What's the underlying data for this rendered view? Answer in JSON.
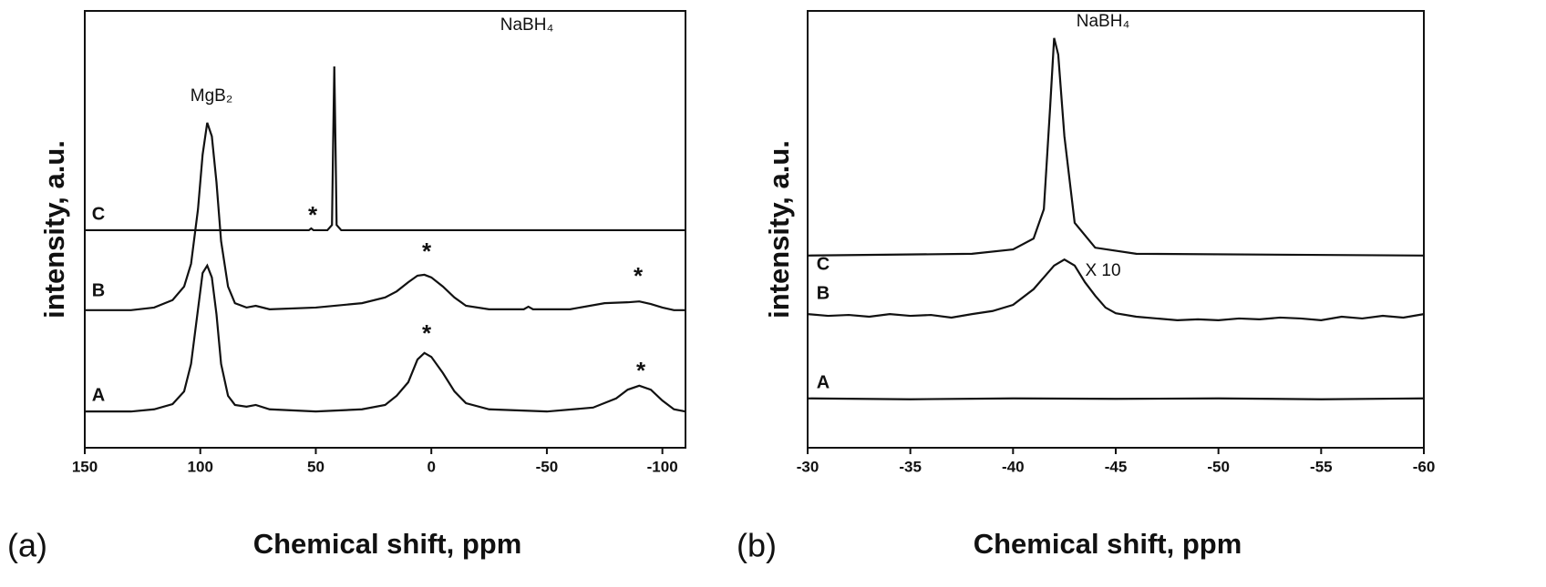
{
  "chart_data": [
    {
      "type": "line",
      "panel_label": "(a)",
      "xlabel": "Chemical shift, ppm",
      "ylabel": "intensity, a.u.",
      "xlim": [
        150,
        -110
      ],
      "xticks": [
        150,
        100,
        50,
        0,
        -50,
        -100
      ],
      "ylim": [
        0,
        100
      ],
      "annotations": [
        "MgB₂",
        "NaBH₄",
        "*",
        "*",
        "*",
        "*",
        "*"
      ],
      "series": [
        {
          "name": "C",
          "color": "#111111",
          "x": [
            150,
            60,
            53,
            52,
            51,
            45,
            43,
            42.5,
            42,
            41.5,
            41,
            39,
            -110
          ],
          "values": [
            49.8,
            49.8,
            49.8,
            50.2,
            49.8,
            49.8,
            51,
            70,
            87.3,
            70,
            51,
            49.8,
            49.8
          ]
        },
        {
          "name": "B",
          "color": "#111111",
          "x": [
            150,
            130,
            120,
            112,
            107,
            104,
            101,
            99,
            97,
            95,
            93,
            91,
            88,
            85,
            80,
            76,
            70,
            50,
            30,
            20,
            15,
            10,
            6,
            3,
            0,
            -5,
            -10,
            -15,
            -25,
            -40,
            -42,
            -44,
            -60,
            -75,
            -85,
            -90,
            -95,
            -100,
            -105,
            -110
          ],
          "values": [
            31.5,
            31.5,
            32.1,
            33.8,
            36.9,
            42.1,
            54.6,
            67.1,
            74.4,
            71.3,
            60.8,
            47.3,
            36.9,
            33.1,
            32.1,
            32.5,
            31.7,
            32.1,
            33.1,
            34.4,
            35.8,
            37.9,
            39.4,
            39.6,
            39.0,
            36.9,
            34.4,
            32.5,
            31.7,
            31.7,
            32.3,
            31.7,
            31.7,
            33.1,
            33.3,
            33.5,
            32.9,
            32.1,
            31.5,
            31.5
          ]
        },
        {
          "name": "A",
          "color": "#111111",
          "x": [
            150,
            130,
            120,
            112,
            107,
            104,
            101,
            99,
            97,
            95,
            93,
            91,
            88,
            85,
            80,
            76,
            70,
            50,
            30,
            20,
            15,
            10,
            6,
            3,
            0,
            -5,
            -10,
            -15,
            -25,
            -50,
            -70,
            -80,
            -85,
            -90,
            -95,
            -100,
            -105,
            -110
          ],
          "values": [
            8.3,
            8.3,
            8.8,
            10.0,
            12.9,
            19.2,
            31.7,
            40.0,
            41.7,
            39.0,
            30.6,
            19.2,
            11.9,
            9.8,
            9.4,
            9.8,
            8.8,
            8.3,
            8.8,
            9.8,
            11.9,
            15.0,
            20.2,
            21.7,
            20.8,
            17.1,
            12.9,
            10.2,
            8.8,
            8.3,
            9.2,
            11.3,
            13.3,
            14.2,
            13.3,
            10.8,
            8.8,
            8.3
          ]
        }
      ]
    },
    {
      "type": "line",
      "panel_label": "(b)",
      "xlabel": "Chemical shift, ppm",
      "ylabel": "intensity, a.u.",
      "xlim": [
        -30,
        -60
      ],
      "xticks": [
        -30,
        -35,
        -40,
        -45,
        -50,
        -55,
        -60
      ],
      "ylim": [
        0,
        100
      ],
      "annotations": [
        "NaBH₄",
        "X 10"
      ],
      "series": [
        {
          "name": "C",
          "color": "#111111",
          "x": [
            -30,
            -38,
            -40,
            -41,
            -41.5,
            -41.8,
            -42,
            -42.2,
            -42.5,
            -43,
            -44,
            -46,
            -60
          ],
          "values": [
            44.0,
            44.4,
            45.4,
            47.9,
            54.6,
            77.5,
            93.8,
            90.0,
            71.3,
            51.5,
            45.8,
            44.4,
            44.0
          ]
        },
        {
          "name": "B",
          "color": "#111111",
          "x": [
            -30,
            -31,
            -32,
            -33,
            -34,
            -35,
            -36,
            -37,
            -38,
            -39,
            -40,
            -41,
            -41.5,
            -42,
            -42.5,
            -43,
            -43.5,
            -44,
            -44.5,
            -45,
            -46,
            -47,
            -48,
            -49,
            -50,
            -51,
            -52,
            -53,
            -54,
            -55,
            -56,
            -57,
            -58,
            -59,
            -60
          ],
          "values": [
            30.6,
            30.2,
            30.4,
            30.0,
            30.6,
            30.2,
            30.4,
            29.8,
            30.6,
            31.3,
            32.7,
            36.3,
            39.0,
            41.7,
            43.1,
            41.7,
            37.9,
            34.8,
            32.1,
            30.8,
            30.0,
            29.6,
            29.2,
            29.4,
            29.2,
            29.6,
            29.4,
            29.8,
            29.6,
            29.2,
            30.0,
            29.6,
            30.2,
            29.8,
            30.6
          ]
        },
        {
          "name": "A",
          "color": "#111111",
          "x": [
            -30,
            -35,
            -40,
            -45,
            -50,
            -55,
            -60
          ],
          "values": [
            11.3,
            11.1,
            11.3,
            11.2,
            11.3,
            11.1,
            11.3
          ]
        }
      ]
    }
  ]
}
